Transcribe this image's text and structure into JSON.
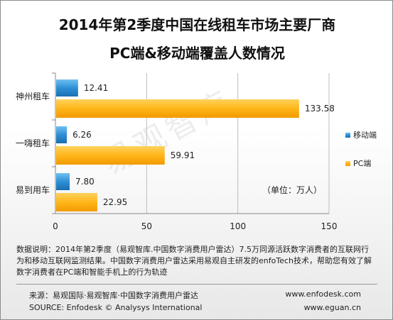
{
  "title_line1": "2014年第2季度中国在线租车市场主要厂商",
  "title_line2": "PC端&移动端覆盖人数情况",
  "watermark": "易观智库",
  "unit_note": "（单位：万人）",
  "notes": "数据说明：2014年第2季度（易观智库.中国数字消费用户雷达）7.5万同源活跃数字消费者的互联网行为和移动互联网监测结果。中国数字消费用户雷达采用易观自主研发的enfoTech技术，帮助您有效了解数字消费者在PC端和智能手机上的行为轨迹",
  "footer": {
    "source_cn": "来源：易观国际·易观智库·中国数字消费用户雷达",
    "source_en": "SOURCE: Enfodesk © Analysys International",
    "url1": "www.enfodesk.com",
    "url2": "www.eguan.cn"
  },
  "colors": {
    "mobile": "#2e8fd6",
    "pc": "#ffb619"
  },
  "chart_data": {
    "type": "bar",
    "orientation": "horizontal",
    "title": "2014年第2季度中国在线租车市场主要厂商 PC端&移动端覆盖人数情况",
    "categories": [
      "神州租车",
      "一嗨租车",
      "易到用车"
    ],
    "series": [
      {
        "name": "移动端",
        "values": [
          12.41,
          6.26,
          7.8
        ]
      },
      {
        "name": "PC端",
        "values": [
          133.58,
          59.91,
          22.95
        ]
      }
    ],
    "xlim": [
      0,
      150
    ],
    "xticks": [
      0,
      50,
      100,
      150
    ],
    "grid": true,
    "legend": "right"
  }
}
